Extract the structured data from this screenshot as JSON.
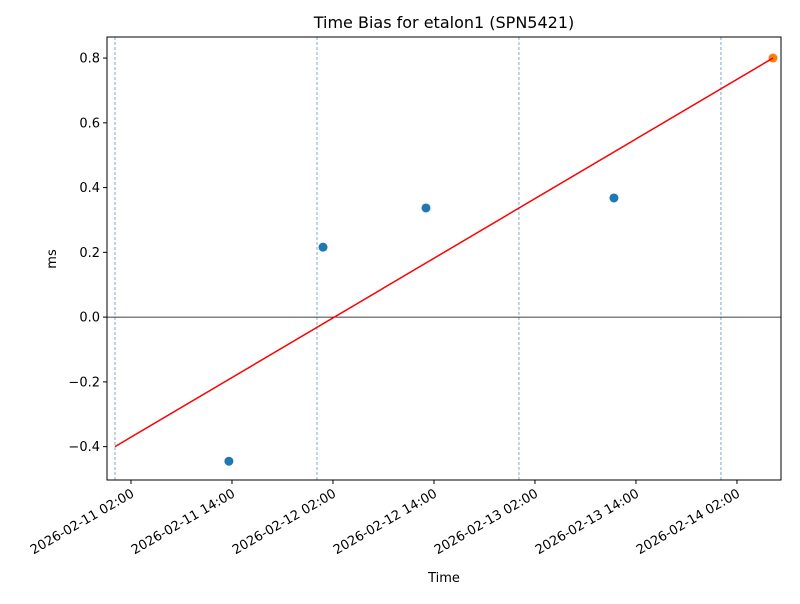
{
  "chart_data": {
    "type": "scatter",
    "title": "Time Bias for etalon1 (SPN5421)",
    "xlabel": "Time",
    "ylabel": "ms",
    "xlim": [
      "2026-02-10 23:09",
      "2026-02-14 07:14"
    ],
    "xticks": [
      "2026-02-11 02:00",
      "2026-02-11 14:00",
      "2026-02-12 02:00",
      "2026-02-12 14:00",
      "2026-02-13 02:00",
      "2026-02-13 14:00",
      "2026-02-14 02:00"
    ],
    "ylim": [
      -0.503,
      0.865
    ],
    "yticks": [
      {
        "value": -0.4,
        "label": "−0.4"
      },
      {
        "value": -0.2,
        "label": "−0.2"
      },
      {
        "value": 0,
        "label": "0.0"
      },
      {
        "value": 0.2,
        "label": "0.2"
      },
      {
        "value": 0.4,
        "label": "0.4"
      },
      {
        "value": 0.6,
        "label": "0.6"
      },
      {
        "value": 0.8,
        "label": "0.8"
      }
    ],
    "series": [
      {
        "type": "scatter",
        "color": "#1f77b4",
        "x": [
          "2026-02-11 13:38",
          "2026-02-12 00:49",
          "2026-02-12 13:03",
          "2026-02-13 11:23"
        ],
        "values": [
          -0.445,
          0.216,
          0.337,
          0.368
        ]
      },
      {
        "type": "scatter",
        "color": "#ff7f0e",
        "x": [
          "2026-02-14 06:17"
        ],
        "values": [
          0.8
        ]
      },
      {
        "type": "line",
        "color": "#ff0000",
        "x": [
          "2026-02-11 00:06",
          "2026-02-14 06:17"
        ],
        "values": [
          -0.4,
          0.8
        ]
      }
    ],
    "vlines": {
      "color": "#1f77b4",
      "x": [
        "2026-02-11 00:06",
        "2026-02-12 00:06",
        "2026-02-13 00:06",
        "2026-02-14 00:06"
      ]
    },
    "hline": {
      "color": "#000000",
      "y": 0
    }
  }
}
